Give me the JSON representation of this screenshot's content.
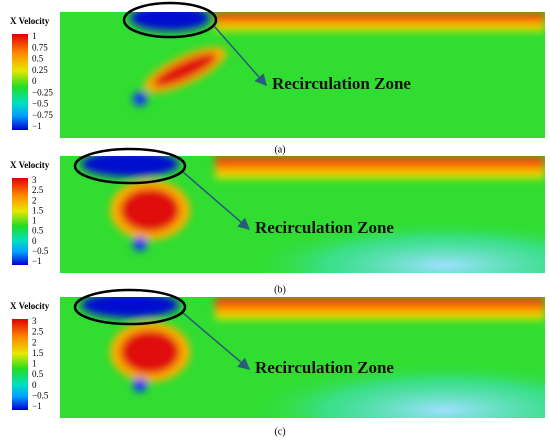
{
  "panels": [
    {
      "colorbar": {
        "title": "X Velocity",
        "ticks": [
          "1",
          "0.75",
          "0.5",
          "0.25",
          "0",
          "−0.25",
          "−0.5",
          "−0.75",
          "−1"
        ]
      },
      "annotation": "Recirculation Zone",
      "caption": "(a)"
    },
    {
      "colorbar": {
        "title": "X Velocity",
        "ticks": [
          "3",
          "2.5",
          "2",
          "1.5",
          "1",
          "0.5",
          "0",
          "−0.5",
          "−1"
        ]
      },
      "annotation": "Recirculation Zone",
      "caption": "(b)"
    },
    {
      "colorbar": {
        "title": "X Velocity",
        "ticks": [
          "3",
          "2.5",
          "2",
          "1.5",
          "1",
          "0.5",
          "0",
          "−0.5",
          "−1"
        ]
      },
      "annotation": "Recirculation Zone",
      "caption": "(c)"
    }
  ]
}
